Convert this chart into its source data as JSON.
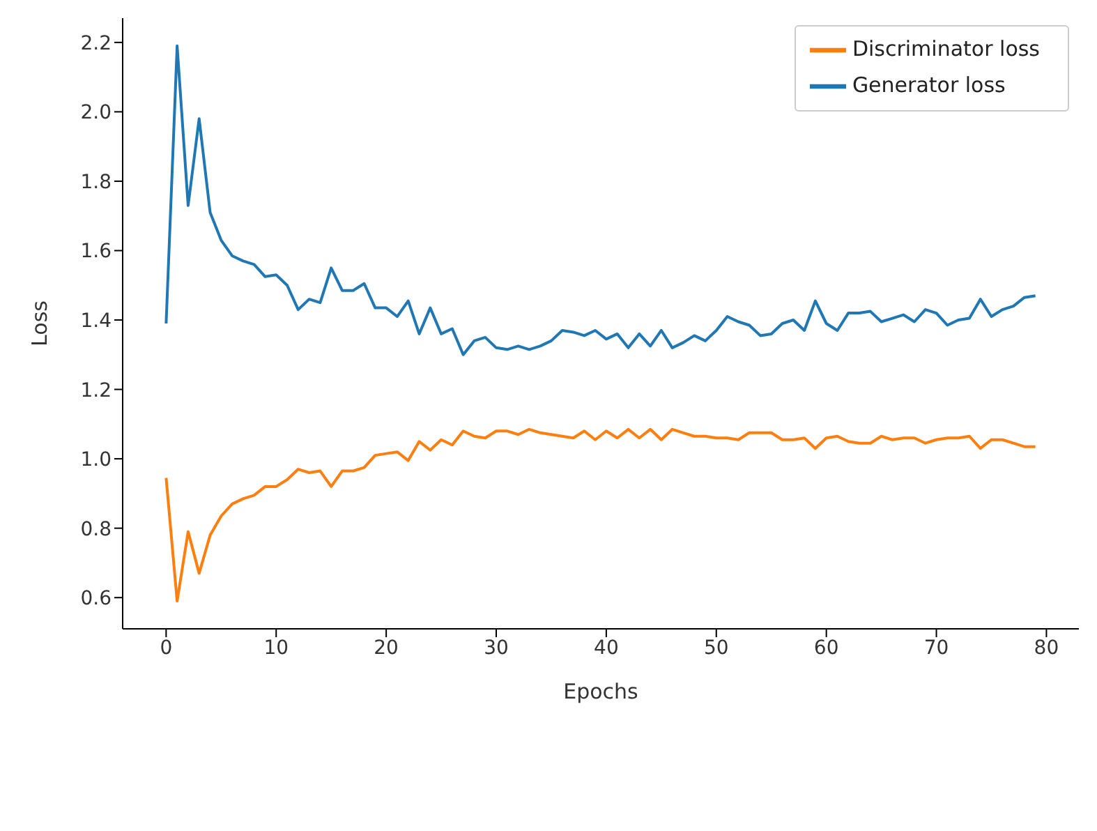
{
  "chart_data": {
    "type": "line",
    "xlabel": "Epochs",
    "ylabel": "Loss",
    "x": [
      0,
      1,
      2,
      3,
      4,
      5,
      6,
      7,
      8,
      9,
      10,
      11,
      12,
      13,
      14,
      15,
      16,
      17,
      18,
      19,
      20,
      21,
      22,
      23,
      24,
      25,
      26,
      27,
      28,
      29,
      30,
      31,
      32,
      33,
      34,
      35,
      36,
      37,
      38,
      39,
      40,
      41,
      42,
      43,
      44,
      45,
      46,
      47,
      48,
      49,
      50,
      51,
      52,
      53,
      54,
      55,
      56,
      57,
      58,
      59,
      60,
      61,
      62,
      63,
      64,
      65,
      66,
      67,
      68,
      69,
      70,
      71,
      72,
      73,
      74,
      75,
      76,
      77,
      78,
      79
    ],
    "series": [
      {
        "name": "Generator loss",
        "color": "#1f77b4",
        "values": [
          1.39,
          2.19,
          1.73,
          1.98,
          1.71,
          1.63,
          1.585,
          1.57,
          1.56,
          1.525,
          1.53,
          1.5,
          1.43,
          1.46,
          1.45,
          1.55,
          1.485,
          1.485,
          1.505,
          1.435,
          1.435,
          1.41,
          1.455,
          1.36,
          1.435,
          1.36,
          1.375,
          1.3,
          1.34,
          1.35,
          1.32,
          1.315,
          1.325,
          1.315,
          1.325,
          1.34,
          1.37,
          1.365,
          1.355,
          1.37,
          1.345,
          1.36,
          1.32,
          1.36,
          1.325,
          1.37,
          1.32,
          1.335,
          1.355,
          1.34,
          1.37,
          1.41,
          1.395,
          1.385,
          1.355,
          1.36,
          1.39,
          1.4,
          1.37,
          1.455,
          1.39,
          1.37,
          1.42,
          1.42,
          1.425,
          1.395,
          1.405,
          1.415,
          1.395,
          1.43,
          1.42,
          1.385,
          1.4,
          1.405,
          1.46,
          1.41,
          1.43,
          1.44,
          1.465,
          1.47
        ]
      },
      {
        "name": "Discriminator loss",
        "color": "#ff7f0e",
        "values": [
          0.945,
          0.59,
          0.79,
          0.67,
          0.78,
          0.835,
          0.87,
          0.885,
          0.895,
          0.92,
          0.92,
          0.94,
          0.97,
          0.96,
          0.965,
          0.92,
          0.965,
          0.965,
          0.975,
          1.01,
          1.015,
          1.02,
          0.995,
          1.05,
          1.025,
          1.055,
          1.04,
          1.08,
          1.065,
          1.06,
          1.08,
          1.08,
          1.07,
          1.085,
          1.075,
          1.07,
          1.065,
          1.06,
          1.08,
          1.055,
          1.08,
          1.06,
          1.085,
          1.06,
          1.085,
          1.055,
          1.085,
          1.075,
          1.065,
          1.065,
          1.06,
          1.06,
          1.055,
          1.075,
          1.075,
          1.075,
          1.055,
          1.055,
          1.06,
          1.03,
          1.06,
          1.065,
          1.05,
          1.045,
          1.045,
          1.065,
          1.055,
          1.06,
          1.06,
          1.045,
          1.055,
          1.06,
          1.06,
          1.065,
          1.03,
          1.055,
          1.055,
          1.045,
          1.035,
          1.035
        ]
      }
    ],
    "xlim": [
      -3.95,
      82.95
    ],
    "xticks": [
      0,
      10,
      20,
      30,
      40,
      50,
      60,
      70,
      80
    ],
    "ylim": [
      0.51,
      2.27
    ],
    "yticks": [
      0.6,
      0.8,
      {
        "value": 1.0,
        "label": "1.0"
      },
      1.2,
      1.4,
      1.6,
      1.8,
      {
        "value": 2.0,
        "label": "2.0"
      },
      2.2
    ],
    "legend": "top right",
    "marker": "none",
    "line_style": "solid"
  }
}
